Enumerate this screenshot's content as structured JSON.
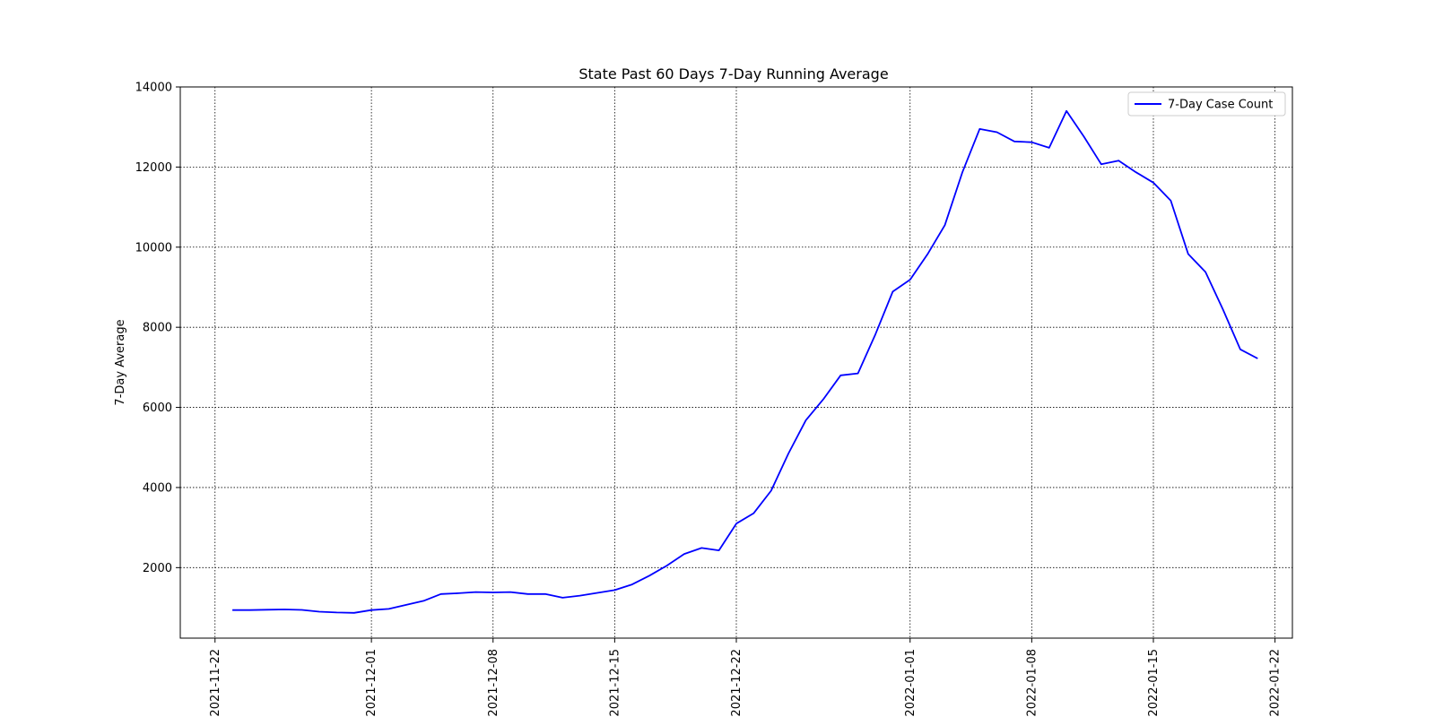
{
  "chart_data": {
    "type": "line",
    "title": "State Past 60 Days 7-Day Running Average",
    "xlabel": "",
    "ylabel": "7-Day Average",
    "xlim": [
      "2021-11-20",
      "2022-01-23"
    ],
    "ylim": [
      240,
      14000
    ],
    "x_tick_labels": [
      "2021-11-22",
      "2021-12-01",
      "2021-12-08",
      "2021-12-15",
      "2021-12-22",
      "2022-01-01",
      "2022-01-08",
      "2022-01-15",
      "2022-01-22"
    ],
    "y_ticks": [
      2000,
      4000,
      6000,
      8000,
      10000,
      12000,
      14000
    ],
    "grid": true,
    "legend_position": "top-right",
    "series": [
      {
        "name": "7-Day Case Count",
        "color": "#0000ff",
        "x": [
          "2021-11-23",
          "2021-11-24",
          "2021-11-25",
          "2021-11-26",
          "2021-11-27",
          "2021-11-28",
          "2021-11-29",
          "2021-11-30",
          "2021-12-01",
          "2021-12-02",
          "2021-12-03",
          "2021-12-04",
          "2021-12-05",
          "2021-12-06",
          "2021-12-07",
          "2021-12-08",
          "2021-12-09",
          "2021-12-10",
          "2021-12-11",
          "2021-12-12",
          "2021-12-13",
          "2021-12-14",
          "2021-12-15",
          "2021-12-16",
          "2021-12-17",
          "2021-12-18",
          "2021-12-19",
          "2021-12-20",
          "2021-12-21",
          "2021-12-22",
          "2021-12-23",
          "2021-12-24",
          "2021-12-25",
          "2021-12-26",
          "2021-12-27",
          "2021-12-28",
          "2021-12-29",
          "2021-12-30",
          "2021-12-31",
          "2022-01-01",
          "2022-01-02",
          "2022-01-03",
          "2022-01-04",
          "2022-01-05",
          "2022-01-06",
          "2022-01-07",
          "2022-01-08",
          "2022-01-09",
          "2022-01-10",
          "2022-01-11",
          "2022-01-12",
          "2022-01-13",
          "2022-01-14",
          "2022-01-15",
          "2022-01-16",
          "2022-01-17",
          "2022-01-18",
          "2022-01-19",
          "2022-01-20",
          "2022-01-21"
        ],
        "values": [
          940,
          940,
          950,
          955,
          945,
          900,
          880,
          870,
          940,
          970,
          1070,
          1170,
          1340,
          1360,
          1390,
          1380,
          1390,
          1340,
          1340,
          1250,
          1300,
          1370,
          1440,
          1580,
          1800,
          2050,
          2340,
          2490,
          2430,
          3100,
          3360,
          3920,
          4850,
          5680,
          6200,
          6800,
          6850,
          7820,
          8890,
          9190,
          9820,
          10550,
          11860,
          12950,
          12870,
          12640,
          12620,
          12480,
          13400,
          12760,
          12070,
          12160,
          11870,
          11610,
          11160,
          9830,
          9380,
          8450,
          7450,
          7220
        ]
      }
    ]
  }
}
